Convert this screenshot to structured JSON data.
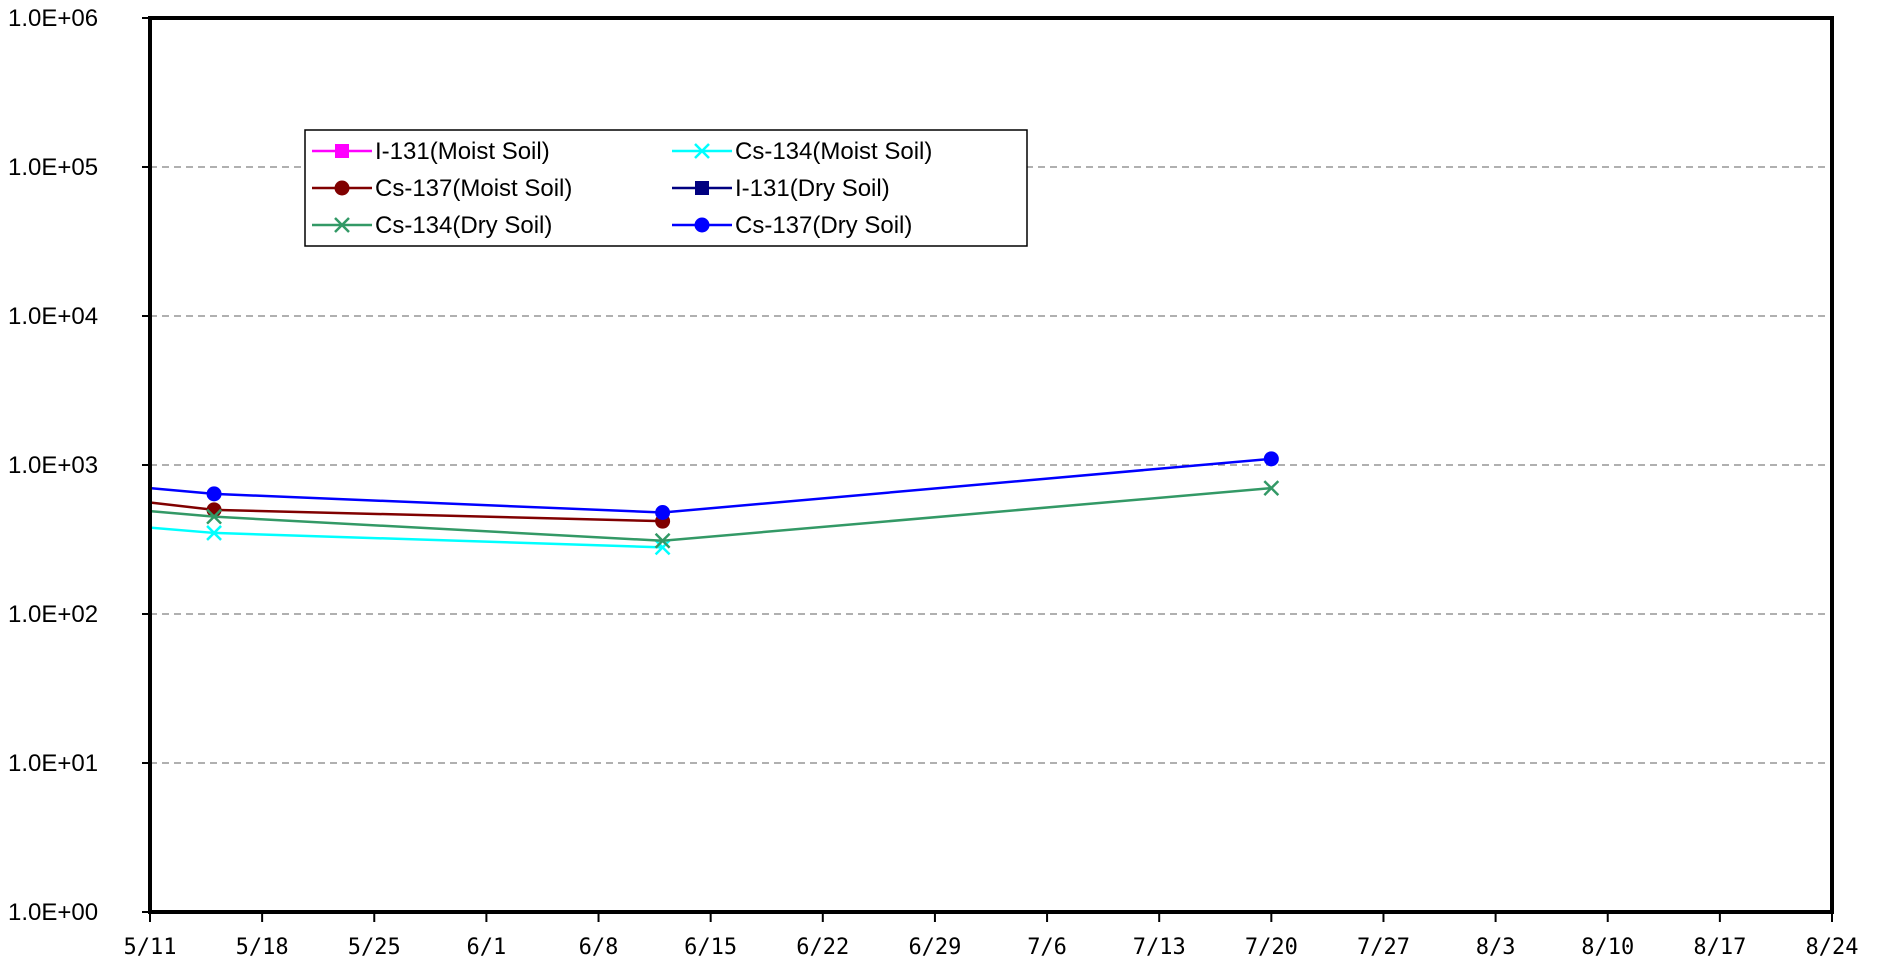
{
  "chart_data": {
    "type": "line",
    "title": "",
    "xlabel": "",
    "ylabel": "",
    "y_scale": "log",
    "ylim": [
      1,
      1000000
    ],
    "y_tick_values": [
      1,
      10,
      100,
      1000,
      10000,
      100000,
      1000000
    ],
    "y_tick_labels": [
      "1.0E+00",
      "1.0E+01",
      "1.0E+02",
      "1.0E+03",
      "1.0E+04",
      "1.0E+05",
      "1.0E+06"
    ],
    "xlim": [
      "5/11",
      "8/24"
    ],
    "x_tick_labels": [
      "5/11",
      "5/18",
      "5/25",
      "6/1",
      "6/8",
      "6/15",
      "6/22",
      "6/29",
      "7/6",
      "7/13",
      "7/20",
      "7/27",
      "8/3",
      "8/10",
      "8/17",
      "8/24"
    ],
    "grid": "horizontal dashed",
    "legend_position": "top-left inside plot",
    "series": [
      {
        "name": "I-131(Moist Soil)",
        "color": "#ff00ff",
        "marker": "square",
        "x": [],
        "y": []
      },
      {
        "name": "Cs-134(Moist Soil)",
        "color": "#00ffff",
        "marker": "x",
        "x": [
          "5/11",
          "5/15",
          "6/12"
        ],
        "y": [
          380,
          350,
          280
        ]
      },
      {
        "name": "Cs-137(Moist Soil)",
        "color": "#800000",
        "marker": "circle",
        "x": [
          "5/11",
          "5/15",
          "6/12"
        ],
        "y": [
          560,
          500,
          420
        ]
      },
      {
        "name": "I-131(Dry Soil)",
        "color": "#000080",
        "marker": "square",
        "x": [],
        "y": []
      },
      {
        "name": "Cs-134(Dry Soil)",
        "color": "#339966",
        "marker": "x",
        "x": [
          "5/11",
          "5/15",
          "6/12",
          "7/20"
        ],
        "y": [
          490,
          450,
          310,
          700
        ]
      },
      {
        "name": "Cs-137(Dry Soil)",
        "color": "#0000ff",
        "marker": "circle",
        "x": [
          "5/11",
          "5/15",
          "6/12",
          "7/20"
        ],
        "y": [
          700,
          640,
          480,
          1100
        ]
      }
    ]
  }
}
